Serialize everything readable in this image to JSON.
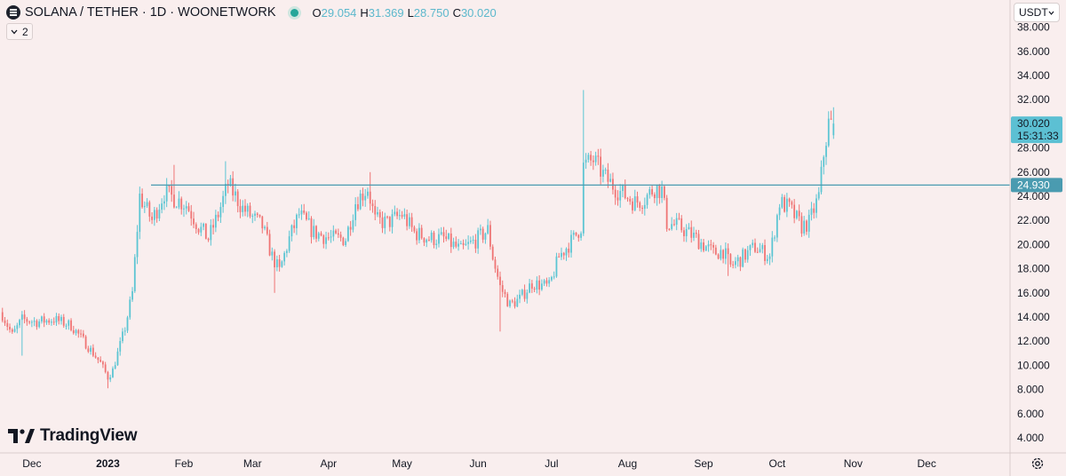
{
  "header": {
    "title": "SOLANA / TETHER · 1D · WOONETWORK",
    "ohlc": [
      {
        "key": "O",
        "value": "29.054"
      },
      {
        "key": "H",
        "value": "31.369"
      },
      {
        "key": "L",
        "value": "28.750"
      },
      {
        "key": "C",
        "value": "30.020"
      }
    ],
    "legend_count": "2"
  },
  "currency": "USDT",
  "logo_text": "TradingView",
  "colors": {
    "up": "#5cc5d3",
    "down": "#ef7474",
    "hline": "#4a9bb0",
    "price_tag": "#5cc0d3"
  },
  "chart_data": {
    "type": "candlestick",
    "title": "SOLANA / TETHER · 1D · WOONETWORK",
    "x_ticks": [
      "Dec",
      "2023",
      "Feb",
      "Mar",
      "Apr",
      "May",
      "Jun",
      "Jul",
      "Aug",
      "Sep",
      "Oct",
      "Nov",
      "Dec"
    ],
    "y_ticks": [
      "4.000",
      "6.000",
      "8.000",
      "10.000",
      "12.000",
      "14.000",
      "16.000",
      "18.000",
      "20.000",
      "22.000",
      "24.000",
      "26.000",
      "28.000",
      "30.000",
      "32.000",
      "34.000",
      "36.000",
      "38.000"
    ],
    "ylim": [
      3,
      38.5
    ],
    "horizontal_line": {
      "value": 24.93,
      "label": "24.930"
    },
    "last_price": {
      "value": 30.02,
      "label": "30.020",
      "countdown": "15:31:33"
    },
    "close_path": [
      [
        "2022-11-19",
        14.2
      ],
      [
        "2022-11-23",
        12.5
      ],
      [
        "2022-11-27",
        13.8
      ],
      [
        "2022-12-03",
        13.6
      ],
      [
        "2022-12-10",
        13.8
      ],
      [
        "2022-12-17",
        13.3
      ],
      [
        "2022-12-23",
        11.8
      ],
      [
        "2022-12-29",
        10.2
      ],
      [
        "2023-01-01",
        9.0
      ],
      [
        "2023-01-03",
        9.6
      ],
      [
        "2023-01-08",
        13.1
      ],
      [
        "2023-01-11",
        16.0
      ],
      [
        "2023-01-14",
        24.0
      ],
      [
        "2023-01-19",
        22.0
      ],
      [
        "2023-01-24",
        24.3
      ],
      [
        "2023-02-02",
        23.3
      ],
      [
        "2023-02-07",
        21.5
      ],
      [
        "2023-02-11",
        20.5
      ],
      [
        "2023-02-15",
        22.5
      ],
      [
        "2023-02-19",
        25.0
      ],
      [
        "2023-02-25",
        23.0
      ],
      [
        "2023-03-05",
        21.5
      ],
      [
        "2023-03-09",
        19.0
      ],
      [
        "2023-03-12",
        17.8
      ],
      [
        "2023-03-16",
        20.5
      ],
      [
        "2023-03-20",
        22.5
      ],
      [
        "2023-03-26",
        21.0
      ],
      [
        "2023-04-02",
        20.5
      ],
      [
        "2023-04-08",
        20.5
      ],
      [
        "2023-04-12",
        23.5
      ],
      [
        "2023-04-17",
        24.7
      ],
      [
        "2023-04-20",
        22.0
      ],
      [
        "2023-04-25",
        21.8
      ],
      [
        "2023-05-01",
        22.5
      ],
      [
        "2023-05-06",
        21.0
      ],
      [
        "2023-05-12",
        20.5
      ],
      [
        "2023-05-18",
        20.5
      ],
      [
        "2023-05-25",
        19.5
      ],
      [
        "2023-06-01",
        20.5
      ],
      [
        "2023-06-05",
        21.2
      ],
      [
        "2023-06-07",
        19.0
      ],
      [
        "2023-06-10",
        16.5
      ],
      [
        "2023-06-14",
        15.0
      ],
      [
        "2023-06-18",
        15.5
      ],
      [
        "2023-06-23",
        16.8
      ],
      [
        "2023-06-30",
        16.5
      ],
      [
        "2023-07-04",
        19.0
      ],
      [
        "2023-07-10",
        20.5
      ],
      [
        "2023-07-13",
        21.5
      ],
      [
        "2023-07-14",
        26.5
      ],
      [
        "2023-07-18",
        27.0
      ],
      [
        "2023-07-23",
        25.5
      ],
      [
        "2023-07-28",
        24.5
      ],
      [
        "2023-08-04",
        23.5
      ],
      [
        "2023-08-08",
        23.8
      ],
      [
        "2023-08-12",
        24.7
      ],
      [
        "2023-08-15",
        24.5
      ],
      [
        "2023-08-17",
        21.8
      ],
      [
        "2023-08-22",
        21.5
      ],
      [
        "2023-08-29",
        20.5
      ],
      [
        "2023-09-05",
        19.3
      ],
      [
        "2023-09-09",
        19.5
      ],
      [
        "2023-09-12",
        18.2
      ],
      [
        "2023-09-16",
        18.8
      ],
      [
        "2023-09-22",
        19.8
      ],
      [
        "2023-09-28",
        19.0
      ],
      [
        "2023-10-02",
        23.5
      ],
      [
        "2023-10-06",
        23.0
      ],
      [
        "2023-10-11",
        21.5
      ],
      [
        "2023-10-14",
        21.8
      ],
      [
        "2023-10-18",
        24.0
      ],
      [
        "2023-10-20",
        27.5
      ],
      [
        "2023-10-22",
        30.0
      ],
      [
        "2023-10-24",
        30.02
      ]
    ],
    "wick_extremes": [
      {
        "date": "2022-11-27",
        "low": 10.8
      },
      {
        "date": "2023-01-01",
        "low": 8.1
      },
      {
        "date": "2023-01-28",
        "high": 26.6
      },
      {
        "date": "2023-02-18",
        "high": 26.9
      },
      {
        "date": "2023-03-10",
        "low": 16.0
      },
      {
        "date": "2023-04-18",
        "high": 26.0
      },
      {
        "date": "2023-06-10",
        "low": 12.8
      },
      {
        "date": "2023-07-14",
        "high": 32.8
      },
      {
        "date": "2023-09-11",
        "low": 17.4
      },
      {
        "date": "2023-10-24",
        "high": 31.369,
        "low": 28.75
      }
    ]
  }
}
